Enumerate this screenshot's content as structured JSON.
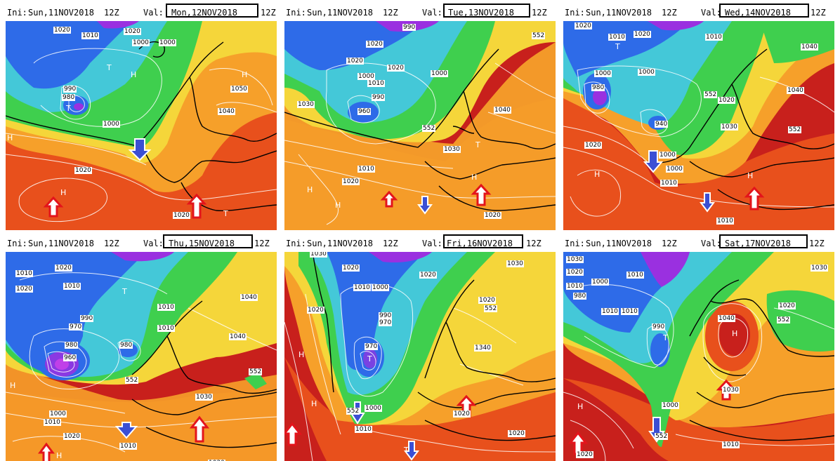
{
  "panels": [
    {
      "ini_label": "Ini:",
      "ini_date": "Sun,11NOV2018",
      "ini_hour": "12Z",
      "val_label": "Val:",
      "val_date": "Mon,12NOV2018",
      "val_hour": "12Z"
    },
    {
      "ini_label": "Ini:",
      "ini_date": "Sun,11NOV2018",
      "ini_hour": "12Z",
      "val_label": "Val:",
      "val_date": "Tue,13NOV2018",
      "val_hour": "12Z"
    },
    {
      "ini_label": "Ini:",
      "ini_date": "Sun,11NOV2018",
      "ini_hour": "12Z",
      "val_label": "Val:",
      "val_date": "Wed,14NOV2018",
      "val_hour": "12Z"
    },
    {
      "ini_label": "Ini:",
      "ini_date": "Sun,11NOV2018",
      "ini_hour": "12Z",
      "val_label": "Val:",
      "val_date": "Thu,15NOV2018",
      "val_hour": "12Z"
    },
    {
      "ini_label": "Ini:",
      "ini_date": "Sun,11NOV2018",
      "ini_hour": "12Z",
      "val_label": "Val:",
      "val_date": "Fri,16NOV2018",
      "val_hour": "12Z"
    },
    {
      "ini_label": "Ini:",
      "ini_date": "Sun,11NOV2018",
      "ini_hour": "12Z",
      "val_label": "Val:",
      "val_date": "Sat,17NOV2018",
      "val_hour": "12Z"
    }
  ],
  "labels": [
    [
      "1020",
      "1010",
      "1020",
      "1000",
      "1000",
      "990",
      "980",
      "1050",
      "1040",
      "1000",
      "1020",
      "1020",
      "H",
      "H",
      "H",
      "T",
      "T",
      "T",
      "H"
    ],
    [
      "990",
      "1020",
      "1020",
      "1020",
      "1000",
      "1010",
      "990",
      "960",
      "1030",
      "1000",
      "1040",
      "552",
      "552",
      "1030",
      "1010",
      "1020",
      "1020",
      "H",
      "H",
      "T",
      "H"
    ],
    [
      "1020",
      "1010",
      "1020",
      "1010",
      "1040",
      "1000",
      "980",
      "1000",
      "1040",
      "552",
      "1020",
      "1030",
      "940",
      "552",
      "1020",
      "1000",
      "1000",
      "1010",
      "1010",
      "H",
      "H",
      "T"
    ],
    [
      "1010",
      "1020",
      "1010",
      "1020",
      "1010",
      "1040",
      "990",
      "970",
      "980",
      "980",
      "960",
      "1010",
      "1040",
      "552",
      "552",
      "1030",
      "1000",
      "1010",
      "1020",
      "1010",
      "1020",
      "H",
      "H",
      "T"
    ],
    [
      "1030",
      "1020",
      "1020",
      "1030",
      "1010",
      "1000",
      "1020",
      "1020",
      "552",
      "990",
      "970",
      "970",
      "1340",
      "1000",
      "552",
      "1010",
      "1020",
      "1020",
      "H",
      "H",
      "T",
      "T"
    ],
    [
      "1030",
      "1020",
      "1030",
      "1010",
      "1010",
      "1000",
      "980",
      "1010",
      "1010",
      "990",
      "1040",
      "1020",
      "552",
      "1030",
      "1000",
      "552",
      "1010",
      "1020",
      "H",
      "T",
      "H"
    ]
  ],
  "arrows": [
    {
      "blue_down": 1,
      "red_up": 2
    },
    {
      "blue_down": 1,
      "red_up": 2
    },
    {
      "blue_down": 2,
      "red_up": 1
    },
    {
      "blue_down": 1,
      "red_up": 2
    },
    {
      "blue_down": 2,
      "red_up": 2
    },
    {
      "blue_down": 1,
      "red_up": 2
    }
  ],
  "colors": {
    "deep_red": "#c8201c",
    "red_orange": "#e8501c",
    "orange": "#f6a02a",
    "yellow": "#f5d63a",
    "green": "#3fcf4e",
    "cyan": "#44c8d8",
    "blue": "#2e6be8",
    "purple": "#9a30e0",
    "arrow_up": "#e3141b",
    "arrow_down": "#3b4fd4"
  }
}
